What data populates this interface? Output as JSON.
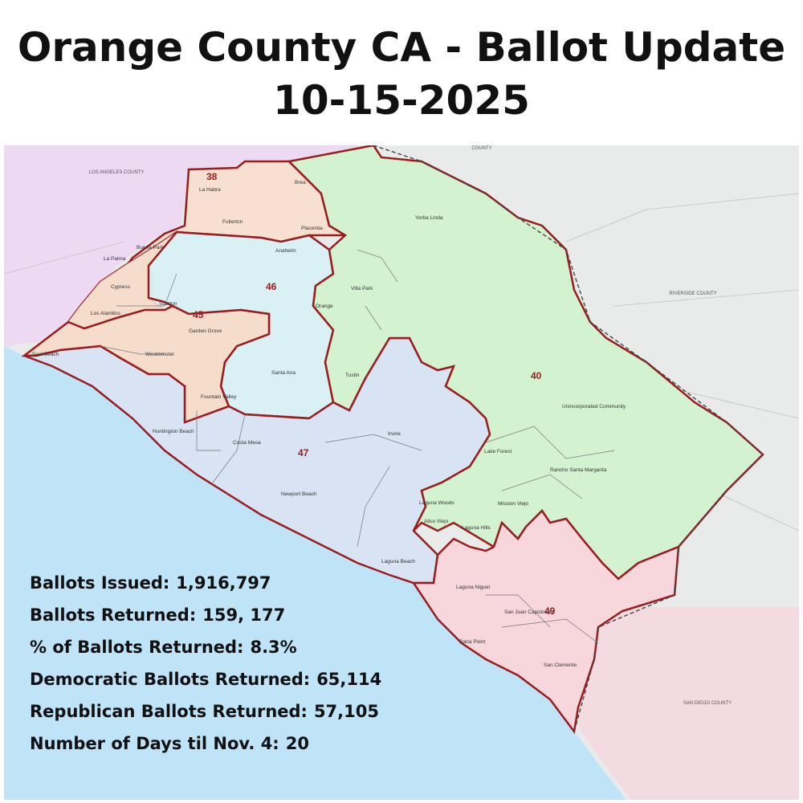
{
  "title": {
    "line1": "Orange County CA - Ballot Update",
    "line2": "10-15-2025"
  },
  "map": {
    "counties": {
      "los_angeles": "LOS ANGELES COUNTY",
      "riverside": "RIVERSIDE COUNTY",
      "san_diego": "SAN DIEGO COUNTY",
      "top": "COUNTY"
    },
    "districts": [
      "38",
      "45",
      "46",
      "40",
      "47",
      "49"
    ],
    "cities": {
      "la_habra": "La Habra",
      "brea": "Brea",
      "fullerton": "Fullerton",
      "yorba_linda": "Yorba Linda",
      "placentia": "Placentia",
      "buena_park": "Buena Park",
      "la_palma": "La Palma",
      "anaheim": "Anaheim",
      "cypress": "Cypress",
      "villa_park": "Villa Park",
      "stanton": "Stanton",
      "los_alamitos": "Los Alamitos",
      "orange": "Orange",
      "garden_grove": "Garden Grove",
      "seal_beach": "Seal Beach",
      "westminster": "Westminster",
      "santa_ana": "Santa Ana",
      "tustin": "Tustin",
      "fountain_valley": "Fountain Valley",
      "huntington_beach": "Huntington Beach",
      "costa_mesa": "Costa Mesa",
      "irvine": "Irvine",
      "unincorporated": "Unincorporated Community",
      "lake_forest": "Lake Forest",
      "rancho_santa_margarita": "Rancho Santa Margarita",
      "newport_beach": "Newport Beach",
      "laguna_woods": "Laguna Woods",
      "mission_viejo": "Mission Viejo",
      "aliso_viejo": "Aliso Viejo",
      "laguna_hills": "Laguna Hills",
      "laguna_beach": "Laguna Beach",
      "laguna_niguel": "Laguna Niguel",
      "san_juan_capistrano": "San Juan Capistrano",
      "dana_point": "Dana Point",
      "san_clemente": "San Clemente"
    }
  },
  "stats": [
    {
      "label": "Ballots Issued:",
      "value": "1,916,797"
    },
    {
      "label": "Ballots Returned:",
      "value": "159, 177"
    },
    {
      "label": "% of Ballots Returned:",
      "value": "8.3%"
    },
    {
      "label": "Democratic Ballots Returned:",
      "value": "65,114"
    },
    {
      "label": "Republican Ballots Returned:",
      "value": "57,105"
    },
    {
      "label": "Number of Days til Nov. 4:",
      "value": "20"
    }
  ],
  "colors": {
    "ocean": "#bfe3f7",
    "land": "#e9eaea",
    "la_county": "#eed9f2",
    "district_38": "#f7e0d2",
    "district_45": "#f5dccb",
    "district_46": "#d9f0f4",
    "district_40": "#d3f2cf",
    "district_47": "#d8e3f3",
    "district_49": "#f7d6dc",
    "district_border": "#9b1c1c"
  }
}
